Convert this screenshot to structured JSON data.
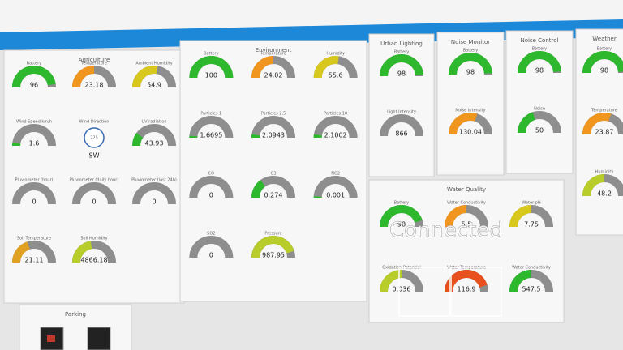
{
  "panels": [
    {
      "title": "Agriculture",
      "gauges": [
        {
          "label": "Battery",
          "value": "96",
          "color": "#2db82d"
        },
        {
          "label": "Temperature",
          "value": "23.18",
          "color": "#f0961e"
        },
        {
          "label": "Ambient Humidity",
          "value": "54.9",
          "color": "#d8c81e"
        },
        {
          "label": "Wind Speed km/h",
          "value": "1.6",
          "color": "#2db82d"
        },
        {
          "label": "Wind Direction",
          "value": "225",
          "heading": "SW",
          "type": "compass",
          "color": "#3a6ab0"
        },
        {
          "label": "UV radiation",
          "value": "43.93",
          "color": "#2db82d"
        },
        {
          "label": "Pluviometer (hour)",
          "value": "0",
          "color": "#2db82d"
        },
        {
          "label": "Pluviometer (daily hour)",
          "value": "0",
          "color": "#2db82d"
        },
        {
          "label": "Pluviometer (last 24h)",
          "value": "0",
          "color": "#2db82d"
        },
        {
          "label": "Soil Temperature",
          "value": "21.11",
          "color": "#e0a020"
        },
        {
          "label": "Soil Humidity",
          "value": "4866.18",
          "color": "#b8cc2a"
        }
      ]
    },
    {
      "title": "Environment",
      "gauges": [
        {
          "label": "Battery",
          "value": "100",
          "color": "#2db82d"
        },
        {
          "label": "Temperature",
          "value": "24.02",
          "color": "#f0961e"
        },
        {
          "label": "Humidity",
          "value": "55.6",
          "color": "#d8c81e"
        },
        {
          "label": "Particles 1",
          "value": "1.6695",
          "color": "#2db82d"
        },
        {
          "label": "Particles 2.5",
          "value": "2.0943",
          "color": "#2db82d"
        },
        {
          "label": "Particles 10",
          "value": "2.1002",
          "color": "#2db82d"
        },
        {
          "label": "CO",
          "value": "0",
          "color": "#2db82d"
        },
        {
          "label": "O3",
          "value": "0.274",
          "color": "#2db82d"
        },
        {
          "label": "NO2",
          "value": "0.001",
          "color": "#2db82d"
        },
        {
          "label": "SO2",
          "value": "0",
          "color": "#2db82d"
        },
        {
          "label": "Pressure",
          "value": "987.95",
          "color": "#b8cc2a"
        }
      ]
    },
    {
      "title": "Urban Lighting",
      "gauges": [
        {
          "label": "Battery",
          "value": "98",
          "color": "#2db82d"
        },
        {
          "label": "Light Intensity",
          "value": "866",
          "color": "#2db82d"
        }
      ]
    },
    {
      "title": "Noise Monitor",
      "gauges": [
        {
          "label": "Battery",
          "value": "98",
          "color": "#2db82d"
        },
        {
          "label": "Noise Intensity",
          "value": "130.04",
          "color": "#f0961e"
        }
      ]
    },
    {
      "title": "Noise Control",
      "gauges": [
        {
          "label": "Battery",
          "value": "98",
          "color": "#2db82d"
        },
        {
          "label": "Noise",
          "value": "50",
          "color": "#2db82d"
        }
      ]
    },
    {
      "title": "Weather",
      "gauges": [
        {
          "label": "Battery",
          "value": "98",
          "color": "#2db82d"
        },
        {
          "label": "Temperature",
          "value": "23.87",
          "color": "#f0961e"
        },
        {
          "label": "Humidity",
          "value": "48.2",
          "color": "#b8cc2a"
        }
      ]
    },
    {
      "title": "Water Quality",
      "gauges": [
        {
          "label": "Battery",
          "value": "98",
          "color": "#2db82d"
        },
        {
          "label": "Water Conductivity",
          "value": "5.5",
          "color": "#f0961e"
        },
        {
          "label": "Water pH",
          "value": "7.75",
          "color": "#d8c81e"
        },
        {
          "label": "Oxidation Potential",
          "value": "0.036",
          "color": "#b8cc2a"
        },
        {
          "label": "Water Temperature",
          "value": "116.9",
          "color": "#e8501e"
        },
        {
          "label": "Water Conductivity",
          "value": "547.5",
          "color": "#2db82d"
        }
      ]
    },
    {
      "title": "Parking",
      "gauges": []
    }
  ],
  "overlay": "Connected"
}
